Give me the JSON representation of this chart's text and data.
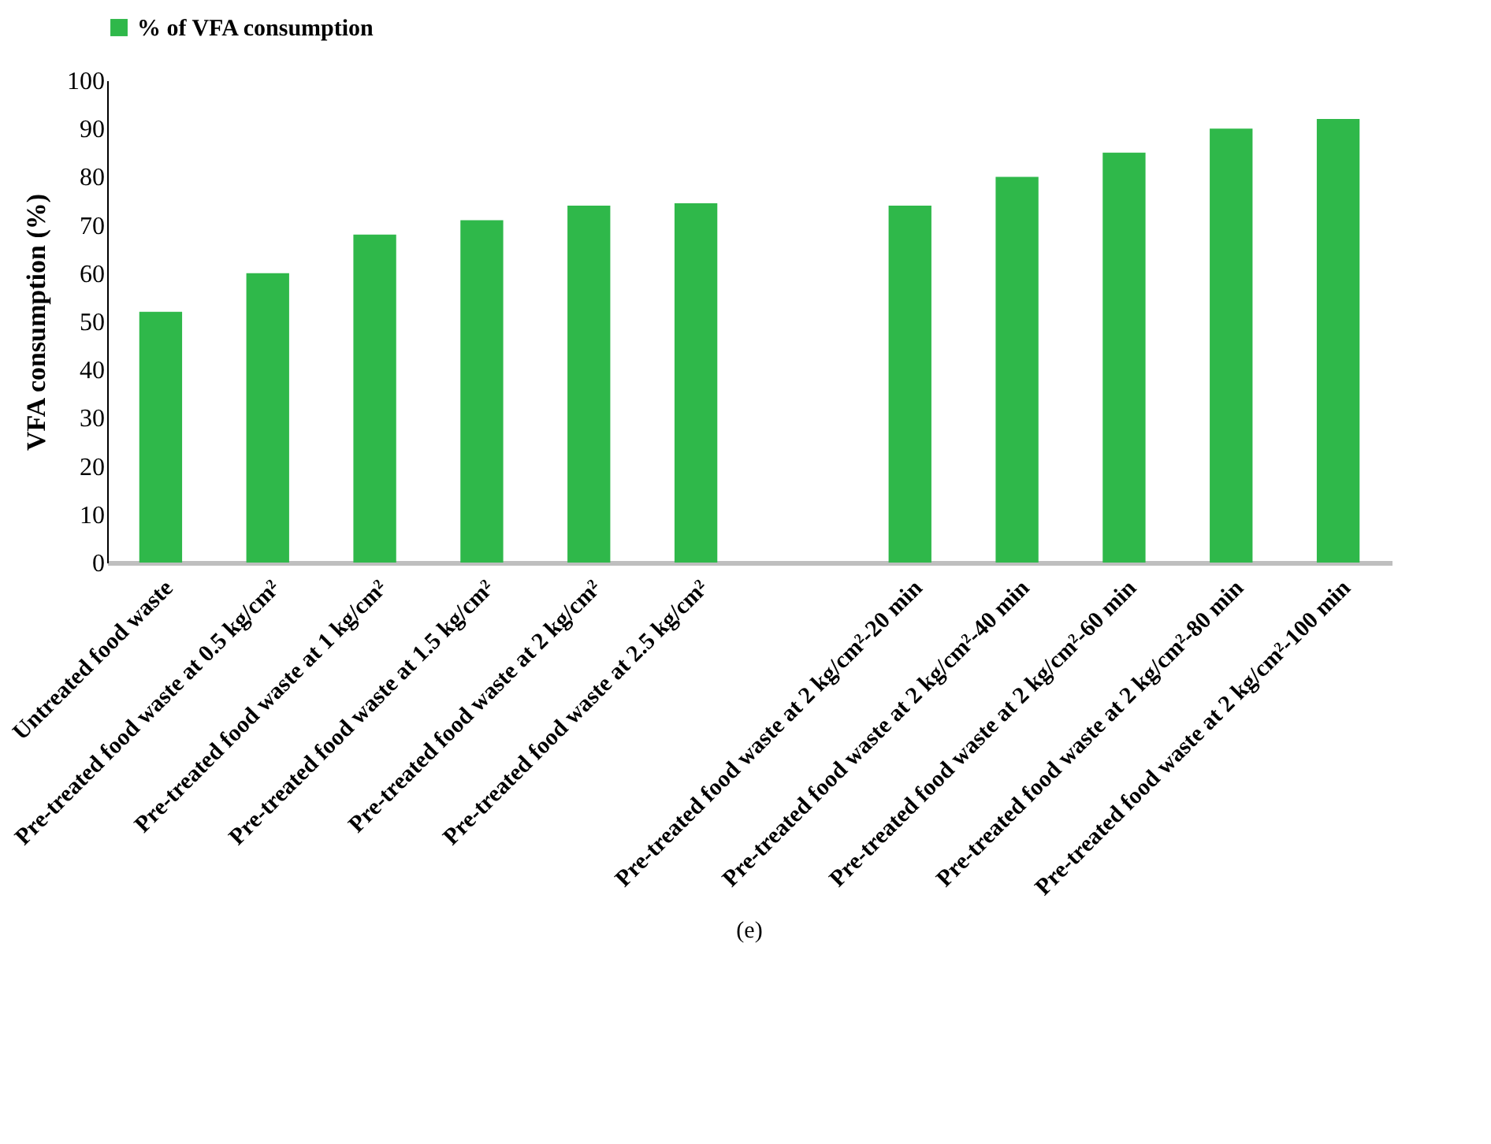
{
  "chart_data": {
    "type": "bar",
    "ylabel": "VFA consumption (%)",
    "categories": [
      "Untreated food waste",
      "Pre-treated food waste at 0.5 kg/cm²",
      "Pre-treated food waste  at 1 kg/cm²",
      "Pre-treated food waste  at 1.5 kg/cm²",
      "Pre-treated food waste  at 2 kg/cm²",
      "Pre-treated food waste  at 2.5 kg/cm²",
      null,
      "Pre-treated food waste  at 2 kg/cm²-20 min",
      "Pre-treated food waste  at 2 kg/cm²-40 min",
      "Pre-treated food waste  at 2 kg/cm²-60 min",
      "Pre-treated food waste  at 2 kg/cm²-80 min",
      "Pre-treated food waste  at 2 kg/cm²-100 min"
    ],
    "series": [
      {
        "name": "% of VFA consumption",
        "color": "#2fb84a",
        "values": [
          52,
          60,
          68,
          71,
          74,
          74.5,
          null,
          74,
          80,
          85,
          90,
          92
        ]
      }
    ],
    "ylim": [
      0,
      100
    ],
    "yticks": [
      0,
      10,
      20,
      30,
      40,
      50,
      60,
      70,
      80,
      90,
      100
    ],
    "grid": false,
    "legend": "top",
    "annotations": [
      "(e)"
    ]
  }
}
